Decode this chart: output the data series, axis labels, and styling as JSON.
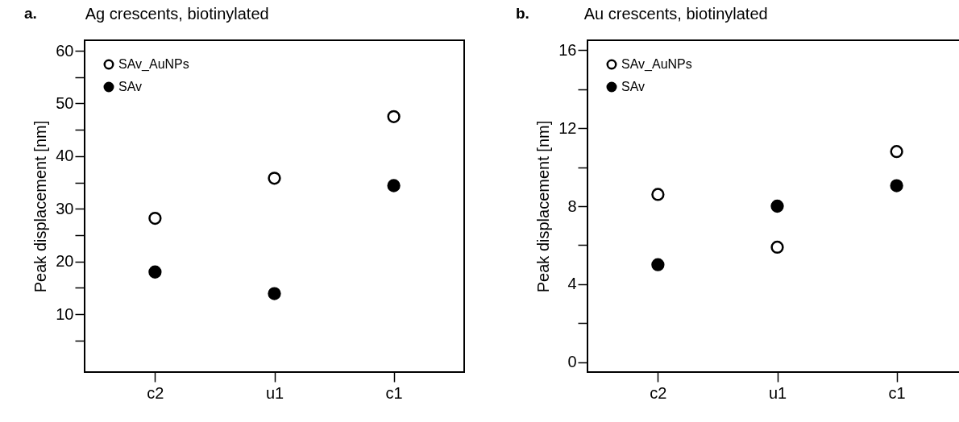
{
  "chart_data": [
    {
      "type": "scatter",
      "title": "Ag crescents, biotinylated",
      "ylabel": "Peak displacement [nm]",
      "annotations": [
        "a."
      ],
      "categories": [
        "c2",
        "u1",
        "c1"
      ],
      "series": [
        {
          "name": "SAv_AuNPs",
          "color": "#ffffff",
          "values": [
            28.2,
            35.8,
            47.5
          ]
        },
        {
          "name": "SAv",
          "color": "#000000",
          "values": [
            18.0,
            13.9,
            34.4
          ]
        }
      ],
      "ylim": [
        -1,
        62
      ],
      "yticks": [
        {
          "value": 5,
          "label": null
        },
        10,
        {
          "value": 15,
          "label": null
        },
        20,
        {
          "value": 25,
          "label": null
        },
        30,
        {
          "value": 35,
          "label": null
        },
        40,
        {
          "value": 45,
          "label": null
        },
        50,
        {
          "value": 55,
          "label": null
        },
        60
      ],
      "marker": "circle",
      "grid": false,
      "legend": "top left"
    },
    {
      "type": "scatter",
      "title": "Au crescents, biotinylated",
      "ylabel": "Peak displacement [nm]",
      "annotations": [
        "b."
      ],
      "categories": [
        "c2",
        "u1",
        "c1"
      ],
      "series": [
        {
          "name": "SAv_AuNPs",
          "color": "#ffffff",
          "values": [
            8.6,
            5.9,
            10.8
          ]
        },
        {
          "name": "SAv",
          "color": "#000000",
          "values": [
            5.0,
            8.0,
            9.05
          ]
        }
      ],
      "ylim": [
        -0.5,
        16.5
      ],
      "yticks": [
        0,
        {
          "value": 2,
          "label": null
        },
        4,
        {
          "value": 6,
          "label": null
        },
        8,
        {
          "value": 10,
          "label": null
        },
        12,
        {
          "value": 14,
          "label": null
        },
        16
      ],
      "marker": "circle",
      "grid": false,
      "legend": "top left"
    }
  ]
}
